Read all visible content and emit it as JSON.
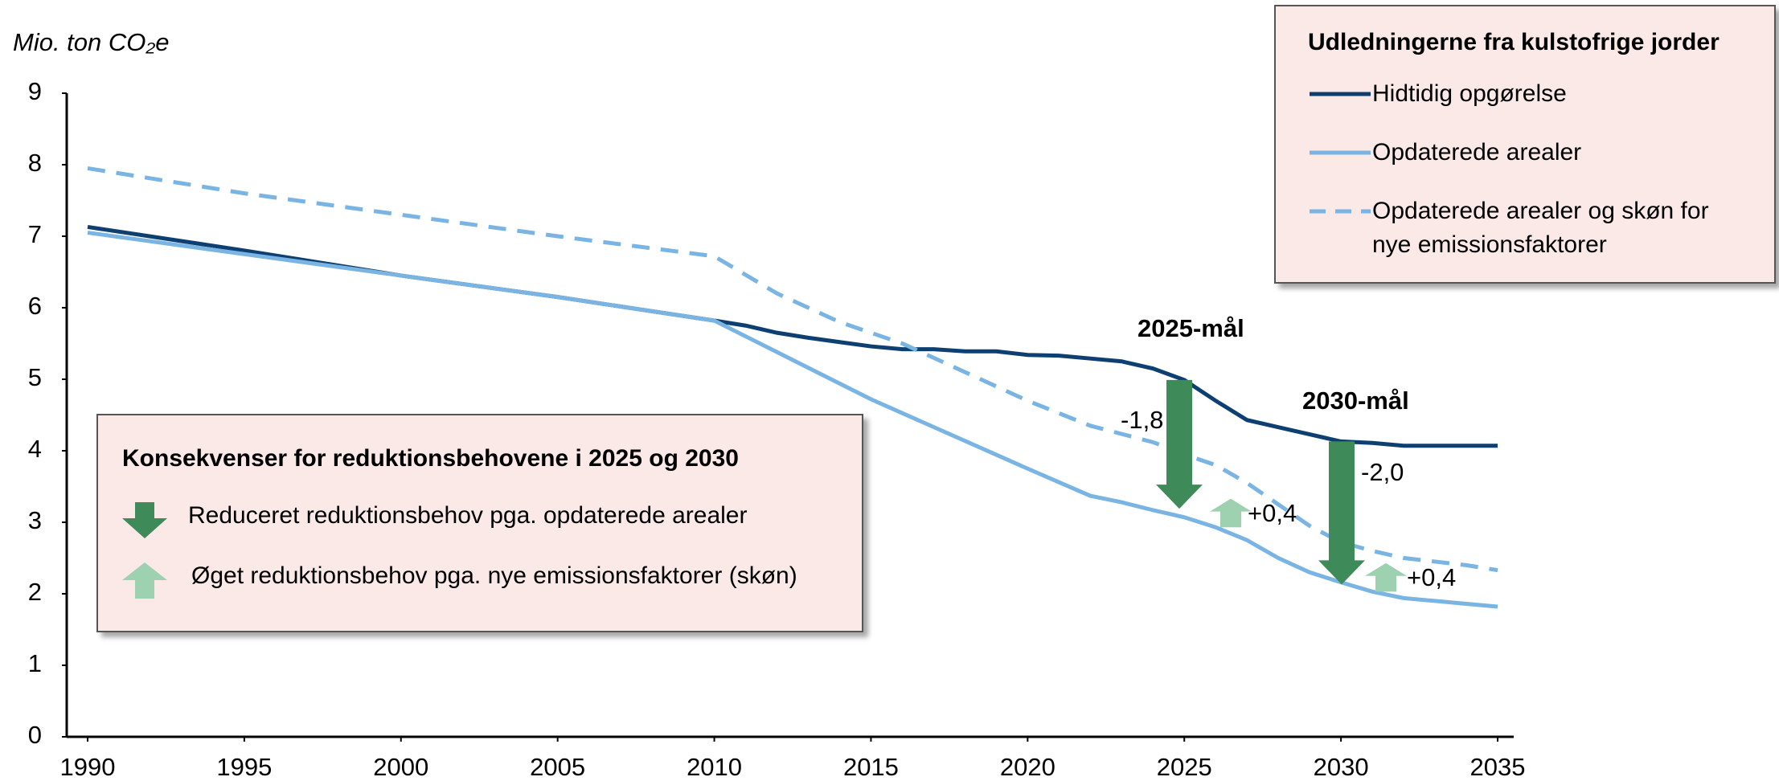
{
  "chart_data": {
    "type": "line",
    "y_label": "Mio. ton CO₂e",
    "xlim": [
      1990,
      2035
    ],
    "xticks": [
      1990,
      1995,
      2000,
      2005,
      2010,
      2015,
      2020,
      2025,
      2030,
      2035
    ],
    "ylim": [
      0,
      9
    ],
    "yticks": [
      0,
      1,
      2,
      3,
      4,
      5,
      6,
      7,
      8,
      9
    ],
    "grid": false,
    "legend": {
      "title": "Udledningerne fra kulstofrige jorder",
      "position": "upper right"
    },
    "series": [
      {
        "name": "Hidtidig opgørelse",
        "color": "#0d3f71",
        "dash": false,
        "x": [
          1990,
          1995,
          2000,
          2005,
          2010,
          2011,
          2012,
          2013,
          2014,
          2015,
          2016,
          2017,
          2018,
          2019,
          2020,
          2021,
          2022,
          2023,
          2024,
          2025,
          2026,
          2027,
          2028,
          2029,
          2030,
          2031,
          2032,
          2033,
          2034,
          2035
        ],
        "values": [
          7.13,
          6.8,
          6.45,
          6.15,
          5.82,
          5.75,
          5.65,
          5.58,
          5.52,
          5.46,
          5.42,
          5.42,
          5.39,
          5.39,
          5.34,
          5.33,
          5.29,
          5.25,
          5.15,
          4.99,
          4.7,
          4.43,
          4.33,
          4.23,
          4.13,
          4.11,
          4.07,
          4.07,
          4.07,
          4.07
        ]
      },
      {
        "name": "Opdaterede arealer",
        "color": "#79b4e3",
        "dash": false,
        "x": [
          1990,
          1995,
          2000,
          2005,
          2010,
          2015,
          2020,
          2022,
          2023,
          2024,
          2025,
          2026,
          2027,
          2028,
          2029,
          2030,
          2031,
          2032,
          2033,
          2034,
          2035
        ],
        "values": [
          7.05,
          6.75,
          6.45,
          6.15,
          5.82,
          4.72,
          3.75,
          3.37,
          3.28,
          3.17,
          3.07,
          2.93,
          2.75,
          2.5,
          2.3,
          2.16,
          2.03,
          1.94,
          1.9,
          1.86,
          1.82
        ]
      },
      {
        "name": "Opdaterede arealer og skøn for nye emissionsfaktorer",
        "color": "#79b4e3",
        "dash": true,
        "x": [
          1990,
          1995,
          2000,
          2005,
          2010,
          2012,
          2014,
          2016,
          2018,
          2020,
          2022,
          2024,
          2025,
          2026,
          2027,
          2028,
          2029,
          2030,
          2031,
          2032,
          2033,
          2034,
          2035
        ],
        "values": [
          7.95,
          7.6,
          7.3,
          7.0,
          6.72,
          6.2,
          5.8,
          5.5,
          5.1,
          4.7,
          4.35,
          4.12,
          3.95,
          3.8,
          3.55,
          3.25,
          2.95,
          2.72,
          2.6,
          2.5,
          2.45,
          2.4,
          2.33
        ]
      }
    ],
    "targets": [
      {
        "label": "2025-mål",
        "changes": [
          {
            "value": -1.8,
            "label": "-1,8"
          },
          {
            "value": 0.4,
            "label": "+0,4"
          }
        ]
      },
      {
        "label": "2030-mål",
        "changes": [
          {
            "value": -2.0,
            "label": "-2,0"
          },
          {
            "value": 0.4,
            "label": "+0,4"
          }
        ]
      }
    ],
    "consequences": {
      "title": "Konsekvenser for reduktionsbehovene i 2025 og 2030",
      "items": [
        "Reduceret reduktionsbehov pga. opdaterede arealer",
        "Øget reduktionsbehov pga. nye emissionsfaktorer (skøn)"
      ]
    }
  }
}
